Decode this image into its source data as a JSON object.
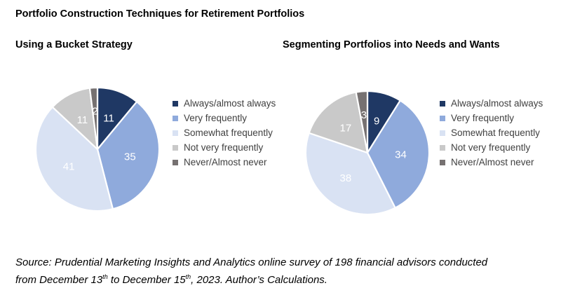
{
  "page": {
    "title": "Portfolio Construction Techniques for Retirement Portfolios"
  },
  "chart_data": [
    {
      "type": "pie",
      "title": "Using a Bucket Strategy",
      "labels": [
        "Always/almost always",
        "Very frequently",
        "Somewhat frequently",
        "Not very frequently",
        "Never/Almost never"
      ],
      "values": [
        11,
        35,
        41,
        11,
        2
      ],
      "colors": [
        "#1F3864",
        "#8FAADC",
        "#D9E2F3",
        "#C9C9C9",
        "#767171"
      ],
      "start_angle_deg": 0,
      "direction": "clockwise",
      "data_labels": true,
      "data_label_color": "#FFFFFF",
      "legend_position": "right"
    },
    {
      "type": "pie",
      "title": "Segmenting Portfolios into Needs and Wants",
      "labels": [
        "Always/almost always",
        "Very frequently",
        "Somewhat frequently",
        "Not very frequently",
        "Never/Almost never"
      ],
      "values": [
        9,
        34,
        38,
        17,
        3
      ],
      "colors": [
        "#1F3864",
        "#8FAADC",
        "#D9E2F3",
        "#C9C9C9",
        "#767171"
      ],
      "start_angle_deg": 0,
      "direction": "clockwise",
      "data_labels": true,
      "data_label_color": "#FFFFFF",
      "legend_position": "right"
    }
  ],
  "source": {
    "line1": "Source: Prudential Marketing Insights and Analytics online survey of 198 financial advisors conducted",
    "line2_parts": [
      "from December 13",
      "th",
      " to December 15",
      "th",
      ", 2023. Author’s Calculations."
    ]
  }
}
